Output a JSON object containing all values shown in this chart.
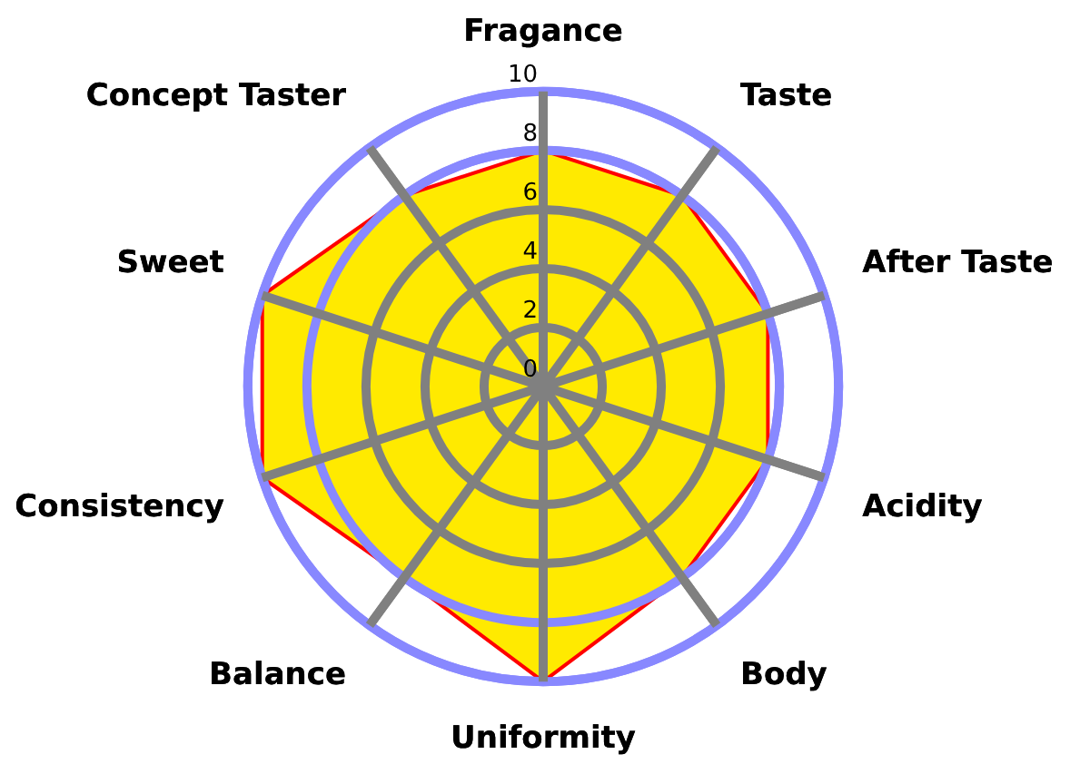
{
  "chart_data": {
    "type": "radar",
    "categories": [
      "Fragance",
      "Taste",
      "After Taste",
      "Acidity",
      "Body",
      "Uniformity",
      "Balance",
      "Consistency",
      "Sweet",
      "Concept Taster"
    ],
    "series": [
      {
        "color": "#ffea00",
        "values": [
          8,
          8,
          8,
          8,
          8,
          10,
          8,
          10,
          10,
          8
        ]
      }
    ],
    "ylim": [
      0,
      10
    ],
    "yticks": [
      0,
      2,
      4,
      6,
      8,
      10
    ],
    "grid": true,
    "legend": false
  }
}
